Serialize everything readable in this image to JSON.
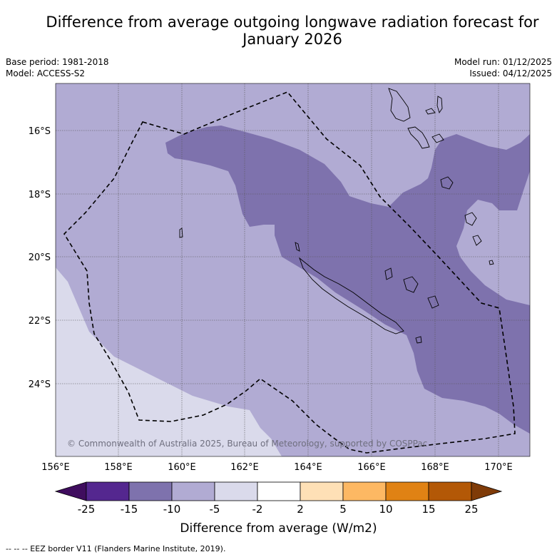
{
  "title_line1": "Difference from average outgoing longwave radiation forecast for",
  "title_line2": "January 2026",
  "meta": {
    "base_period": "Base period: 1981-2018",
    "model": "Model: ACCESS-S2",
    "model_run": "Model run: 01/12/2025",
    "issued": "Issued: 04/12/2025"
  },
  "map": {
    "lat_labels": [
      "16°S",
      "18°S",
      "20°S",
      "22°S",
      "24°S"
    ],
    "lon_labels": [
      "156°E",
      "158°E",
      "160°E",
      "162°E",
      "164°E",
      "166°E",
      "168°E",
      "170°E"
    ],
    "copyright": "© Commonwealth of Australia 2025, Bureau of Meteorology, supported by COSPPac"
  },
  "colorbar": {
    "labels": [
      "-25",
      "-15",
      "-10",
      "-5",
      "-2",
      "2",
      "5",
      "10",
      "15",
      "25"
    ],
    "colors": [
      "#3f0d5e",
      "#54278f",
      "#7e72ad",
      "#b1abd3",
      "#dadaeb",
      "#ffffff",
      "#fee0b6",
      "#fdb863",
      "#e08214",
      "#b35806",
      "#7f3b08"
    ],
    "title": "Difference from average (W/m2)"
  },
  "footnote": "--  --  -- EEZ border V11 (Flanders Marine Institute, 2019)."
}
